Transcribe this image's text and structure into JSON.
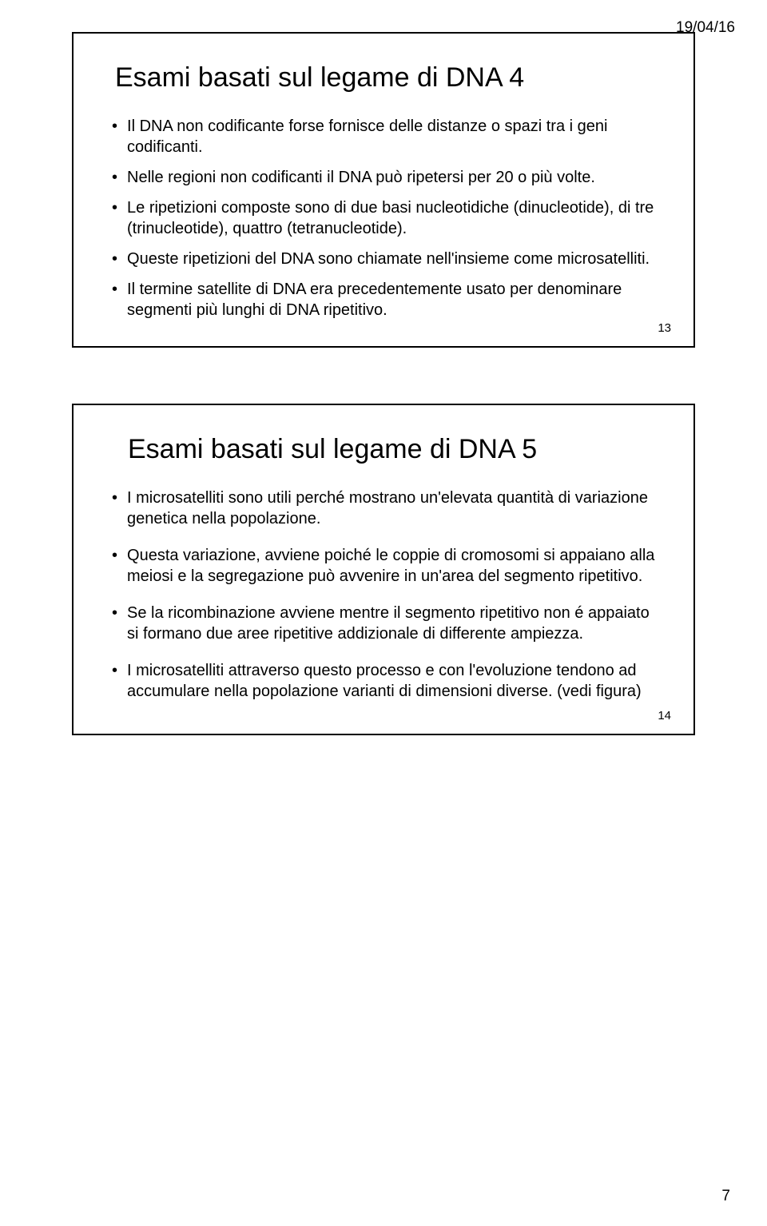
{
  "header": {
    "date": "19/04/16"
  },
  "slide1": {
    "title": "Esami basati sul legame di DNA 4",
    "page_number": "13",
    "bullets": [
      "Il DNA non codificante forse fornisce delle distanze o spazi tra i geni codificanti.",
      "Nelle regioni non codificanti il DNA può ripetersi per 20 o più volte.",
      "Le ripetizioni composte sono di due basi nucleotidiche (dinucleotide), di tre (trinucleotide), quattro (tetranucleotide).",
      "Queste ripetizioni del DNA sono chiamate nell'insieme come microsatelliti.",
      "Il termine satellite di DNA era precedentemente usato per denominare segmenti più lunghi di DNA ripetitivo."
    ]
  },
  "slide2": {
    "title": "Esami basati sul legame di DNA 5",
    "page_number": "14",
    "bullets": [
      "I microsatelliti sono utili perché mostrano un'elevata quantità di variazione genetica nella popolazione.",
      "Questa variazione, avviene poiché le coppie di cromosomi si appaiano alla meiosi e la segregazione può avvenire in un'area del segmento ripetitivo.",
      "Se la ricombinazione avviene mentre il segmento ripetitivo non é appaiato si formano due aree ripetitive addizionale di differente ampiezza.",
      "I microsatelliti attraverso questo processo e con l'evoluzione tendono ad accumulare nella popolazione varianti di dimensioni diverse. (vedi figura)"
    ]
  },
  "footer": {
    "page": "7"
  }
}
